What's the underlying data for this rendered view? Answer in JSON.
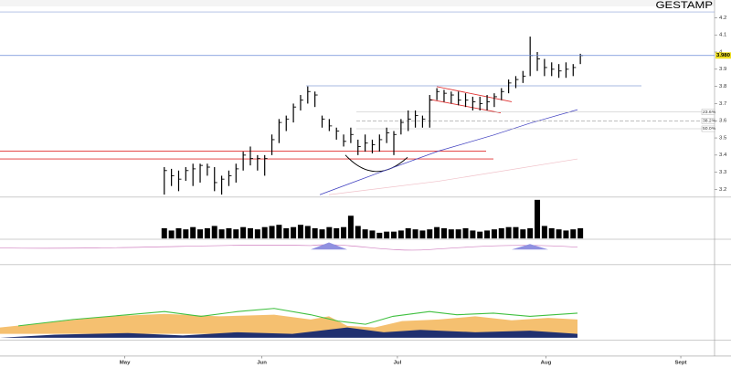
{
  "chart_data": [
    {
      "type": "hlc",
      "title": "GESTAMP",
      "high": [
        3.33,
        3.32,
        3.31,
        3.33,
        3.35,
        3.35,
        3.35,
        3.33,
        3.28,
        3.31,
        3.35,
        3.42,
        3.45,
        3.4,
        3.4,
        3.52,
        3.61,
        3.63,
        3.7,
        3.75,
        3.8,
        3.77,
        3.63,
        3.61,
        3.56,
        3.52,
        3.56,
        3.49,
        3.52,
        3.49,
        3.52,
        3.56,
        3.54,
        3.61,
        3.66,
        3.66,
        3.63,
        3.75,
        3.79,
        3.78,
        3.77,
        3.77,
        3.76,
        3.74,
        3.74,
        3.75,
        3.76,
        3.79,
        3.84,
        3.86,
        3.89,
        4.09,
        4.0,
        3.96,
        3.94,
        3.93,
        3.94,
        3.93,
        3.99
      ],
      "low": [
        3.17,
        3.22,
        3.19,
        3.25,
        3.22,
        3.24,
        3.28,
        3.19,
        3.17,
        3.22,
        3.24,
        3.31,
        3.34,
        3.31,
        3.28,
        3.4,
        3.47,
        3.54,
        3.59,
        3.66,
        3.7,
        3.68,
        3.56,
        3.54,
        3.49,
        3.45,
        3.47,
        3.4,
        3.42,
        3.41,
        3.42,
        3.47,
        3.4,
        3.52,
        3.54,
        3.56,
        3.56,
        3.56,
        3.72,
        3.71,
        3.7,
        3.69,
        3.68,
        3.66,
        3.66,
        3.66,
        3.68,
        3.72,
        3.76,
        3.79,
        3.82,
        3.86,
        3.89,
        3.86,
        3.86,
        3.85,
        3.85,
        3.86,
        3.93
      ],
      "close": [
        3.31,
        3.28,
        3.26,
        3.31,
        3.32,
        3.34,
        3.33,
        3.24,
        3.26,
        3.28,
        3.32,
        3.4,
        3.38,
        3.38,
        3.38,
        3.49,
        3.59,
        3.61,
        3.68,
        3.72,
        3.77,
        3.75,
        3.61,
        3.57,
        3.54,
        3.48,
        3.52,
        3.45,
        3.47,
        3.46,
        3.49,
        3.53,
        3.52,
        3.59,
        3.61,
        3.63,
        3.61,
        3.72,
        3.77,
        3.76,
        3.75,
        3.72,
        3.72,
        3.71,
        3.7,
        3.71,
        3.74,
        3.77,
        3.82,
        3.84,
        3.86,
        3.98,
        3.96,
        3.91,
        3.9,
        3.89,
        3.9,
        3.91,
        3.98
      ],
      "color": "#000000",
      "last_price": {
        "value": 3.98,
        "label": "3.980"
      },
      "annotations": [
        "23.6%",
        "38.2%",
        "50.0%"
      ],
      "ylim": [
        3.16,
        4.28
      ],
      "yticks": [
        3.2,
        3.3,
        3.4,
        3.5,
        3.6,
        3.7,
        3.8,
        3.9,
        4,
        4.1,
        4.2
      ],
      "xlim": [
        -22.9,
        79
      ],
      "xticks": [
        {
          "value": -5.5,
          "label": "May"
        },
        {
          "value": 13.6,
          "label": "Jun"
        },
        {
          "value": 32.5,
          "label": "Jul"
        },
        {
          "value": 53.2,
          "label": "Aug"
        },
        {
          "value": 72,
          "label": "Sept"
        }
      ]
    },
    {
      "type": "bar",
      "values": [
        0.9,
        0.7,
        0.9,
        0.8,
        1.0,
        0.8,
        0.9,
        1.1,
        0.8,
        0.9,
        0.8,
        1.0,
        0.9,
        0.8,
        1.0,
        1.1,
        1.2,
        0.9,
        1.0,
        1.2,
        1.1,
        0.9,
        0.8,
        1.0,
        0.9,
        1.0,
        2.0,
        1.1,
        0.8,
        0.7,
        0.5,
        0.6,
        0.6,
        0.7,
        0.9,
        0.8,
        0.7,
        0.8,
        1.0,
        0.9,
        0.8,
        0.8,
        0.9,
        0.7,
        0.6,
        0.7,
        0.8,
        0.9,
        1.0,
        1.0,
        0.8,
        0.9,
        3.4,
        1.1,
        0.9,
        0.8,
        0.7,
        0.8,
        0.9
      ],
      "color": "#000000",
      "ylim": [
        0,
        3.5
      ]
    }
  ]
}
